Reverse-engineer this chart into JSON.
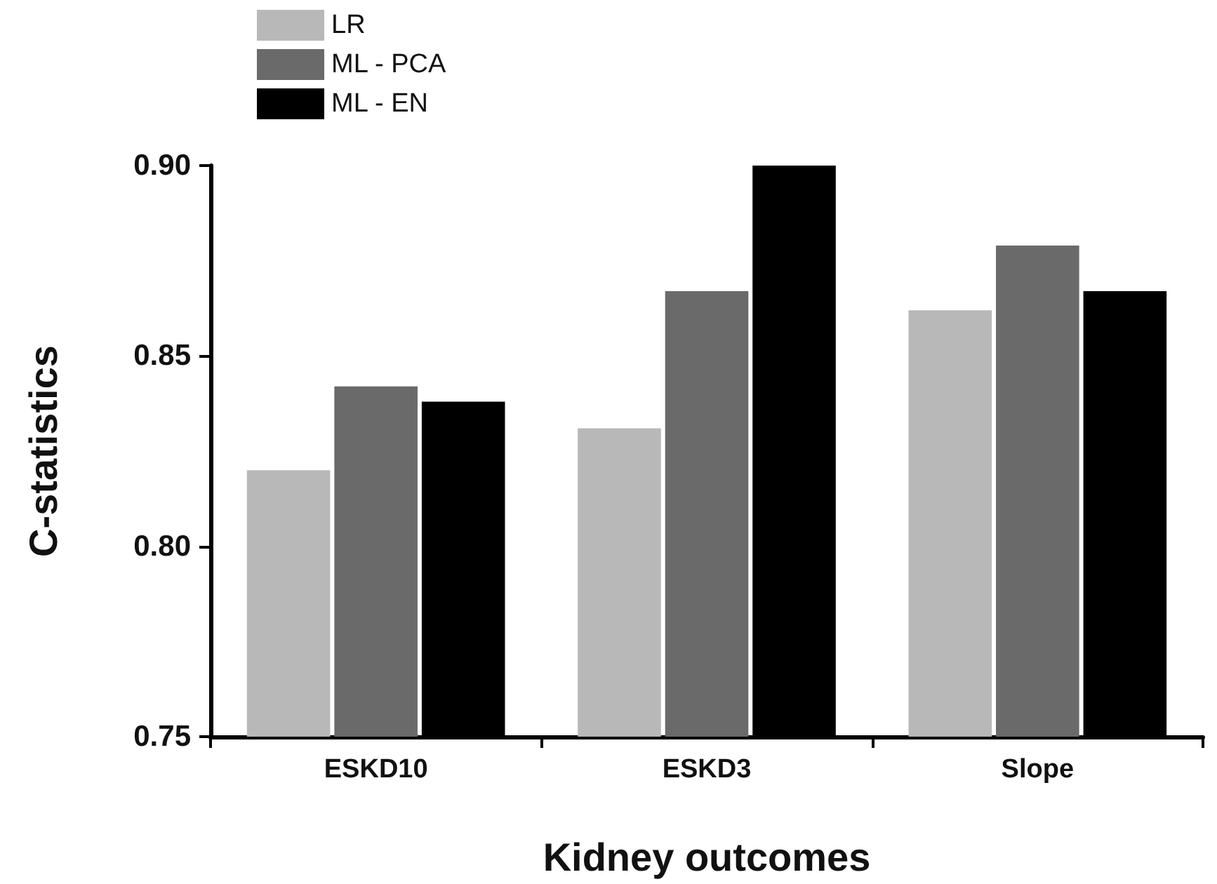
{
  "chart_data": {
    "type": "bar",
    "xlabel": "Kidney outcomes",
    "ylabel": "C-statistics",
    "categories": [
      "ESKD10",
      "ESKD3",
      "Slope"
    ],
    "series": [
      {
        "name": "LR",
        "color": "#b8b8b8",
        "values": [
          0.82,
          0.831,
          0.862
        ]
      },
      {
        "name": "ML - PCA",
        "color": "#6a6a6a",
        "values": [
          0.842,
          0.867,
          0.879
        ]
      },
      {
        "name": "ML - EN",
        "color": "#000000",
        "values": [
          0.838,
          0.9,
          0.867
        ]
      }
    ],
    "ylim": [
      0.75,
      0.9
    ],
    "yticks": [
      {
        "value": 0.75,
        "label": "0.75"
      },
      {
        "value": 0.8,
        "label": "0.80"
      },
      {
        "value": 0.85,
        "label": "0.85"
      },
      {
        "value": 0.9,
        "label": "0.90"
      }
    ],
    "grid": false,
    "legend": "top left"
  }
}
